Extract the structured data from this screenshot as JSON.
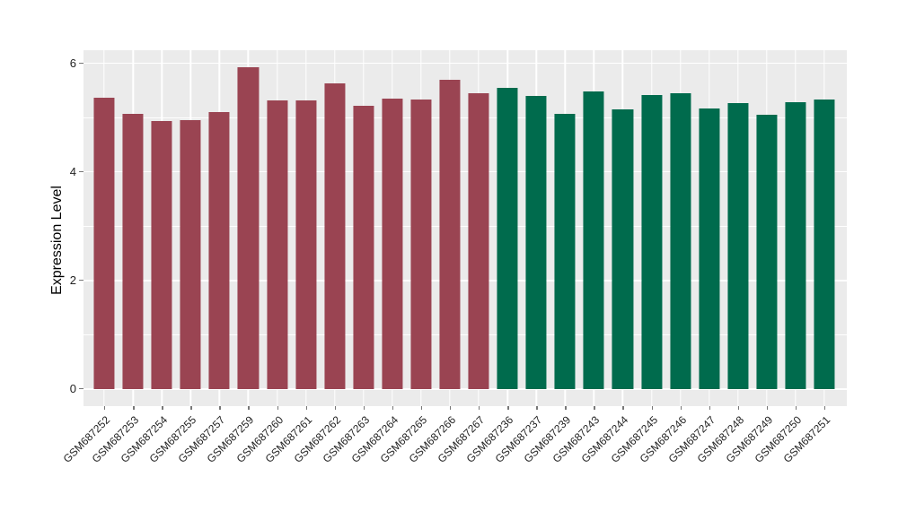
{
  "figure": {
    "background": "#FFFFFF",
    "panel_background": "#EBEBEB"
  },
  "chart_data": {
    "type": "bar",
    "title": "",
    "xlabel": "",
    "ylabel": "Expression Level",
    "ylim": [
      0,
      6.25
    ],
    "yticks": [
      0,
      2,
      4,
      6
    ],
    "yminor": [
      1,
      3,
      5
    ],
    "grid": "on",
    "grid_color": "#FFFFFF",
    "legend": "none",
    "categories": [
      "GSM687252",
      "GSM687253",
      "GSM687254",
      "GSM687255",
      "GSM687257",
      "GSM687259",
      "GSM687260",
      "GSM687261",
      "GSM687262",
      "GSM687263",
      "GSM687264",
      "GSM687265",
      "GSM687266",
      "GSM687267",
      "GSM687236",
      "GSM687237",
      "GSM687239",
      "GSM687243",
      "GSM687244",
      "GSM687245",
      "GSM687246",
      "GSM687247",
      "GSM687248",
      "GSM687249",
      "GSM687250",
      "GSM687251"
    ],
    "values": [
      5.36,
      5.06,
      4.93,
      4.95,
      5.1,
      5.93,
      5.31,
      5.32,
      5.63,
      5.22,
      5.35,
      5.33,
      5.69,
      5.44,
      5.55,
      5.4,
      5.06,
      5.48,
      5.15,
      5.42,
      5.44,
      5.17,
      5.26,
      5.05,
      5.29,
      5.33
    ],
    "groups": [
      "group1",
      "group1",
      "group1",
      "group1",
      "group1",
      "group1",
      "group1",
      "group1",
      "group1",
      "group1",
      "group1",
      "group1",
      "group1",
      "group1",
      "group2",
      "group2",
      "group2",
      "group2",
      "group2",
      "group2",
      "group2",
      "group2",
      "group2",
      "group2",
      "group2",
      "group2"
    ],
    "group_colors": {
      "group1": "#9A4452",
      "group2": "#006B4D"
    }
  }
}
